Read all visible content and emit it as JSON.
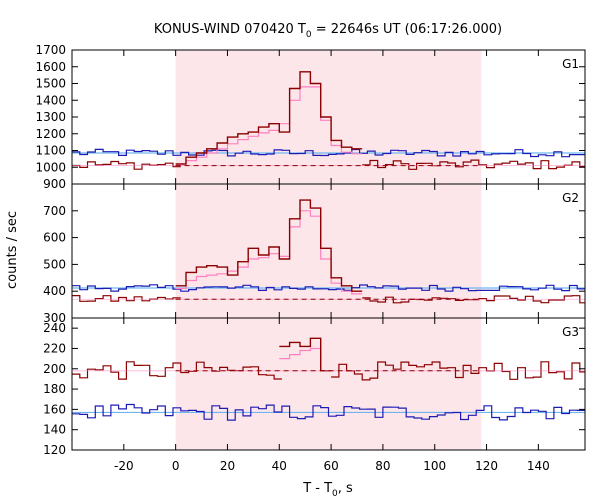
{
  "chart_data": {
    "type": "line",
    "title": {
      "prefix": "KONUS-WIND 070420 T",
      "sub": "0",
      "suffix": " = 22646s UT (06:17:26.000)"
    },
    "xlabel": {
      "prefix": "T - T",
      "sub": "0",
      "suffix": ", s"
    },
    "ylabel": "counts / sec",
    "xlim": [
      -40,
      158
    ],
    "x_ticks": [
      -20,
      0,
      20,
      40,
      60,
      80,
      100,
      120,
      140
    ],
    "shaded_interval": [
      0,
      118
    ],
    "colors": {
      "highlight": "#fde6ea",
      "dark_red": "#8b0000",
      "blue": "#1c1cb4",
      "pink": "#ff80c0",
      "light_blue": "#6fb6f0"
    },
    "panels": [
      {
        "name": "G1",
        "ylim": [
          900,
          1700
        ],
        "y_ticks": [
          900,
          1000,
          1100,
          1200,
          1300,
          1400,
          1500,
          1600,
          1700
        ],
        "background_level": 1010,
        "blue_level": 1085,
        "burst": {
          "x": [
            0,
            4,
            8,
            12,
            16,
            20,
            24,
            28,
            32,
            36,
            40,
            44,
            48,
            52,
            56,
            60,
            64,
            68
          ],
          "red": [
            1020,
            1060,
            1085,
            1110,
            1145,
            1180,
            1200,
            1210,
            1240,
            1260,
            1210,
            1470,
            1570,
            1500,
            1300,
            1160,
            1120,
            1110
          ],
          "fit": [
            1015,
            1040,
            1060,
            1085,
            1110,
            1140,
            1165,
            1185,
            1205,
            1220,
            1260,
            1400,
            1480,
            1480,
            1280,
            1130,
            1090,
            1080
          ]
        }
      },
      {
        "name": "G2",
        "ylim": [
          300,
          800
        ],
        "y_ticks": [
          300,
          400,
          500,
          600,
          700
        ],
        "background_level": 370,
        "blue_level": 412,
        "burst": {
          "x": [
            0,
            4,
            8,
            12,
            16,
            20,
            24,
            28,
            32,
            36,
            40,
            44,
            48,
            52,
            56,
            60,
            64,
            68
          ],
          "red": [
            420,
            470,
            490,
            495,
            490,
            460,
            510,
            560,
            535,
            565,
            520,
            670,
            740,
            710,
            560,
            450,
            420,
            400
          ],
          "fit": [
            410,
            440,
            455,
            460,
            465,
            475,
            490,
            520,
            525,
            540,
            530,
            640,
            700,
            680,
            520,
            430,
            400,
            390
          ]
        }
      },
      {
        "name": "G3",
        "ylim": [
          120,
          250
        ],
        "y_ticks": [
          120,
          140,
          160,
          180,
          200,
          220,
          240
        ],
        "background_level": 198,
        "blue_level": 157,
        "burst": {
          "x": [
            40,
            44,
            48,
            52,
            56
          ],
          "red": [
            222,
            226,
            222,
            230,
            198
          ],
          "fit": [
            210,
            214,
            218,
            220,
            198
          ]
        }
      }
    ]
  }
}
